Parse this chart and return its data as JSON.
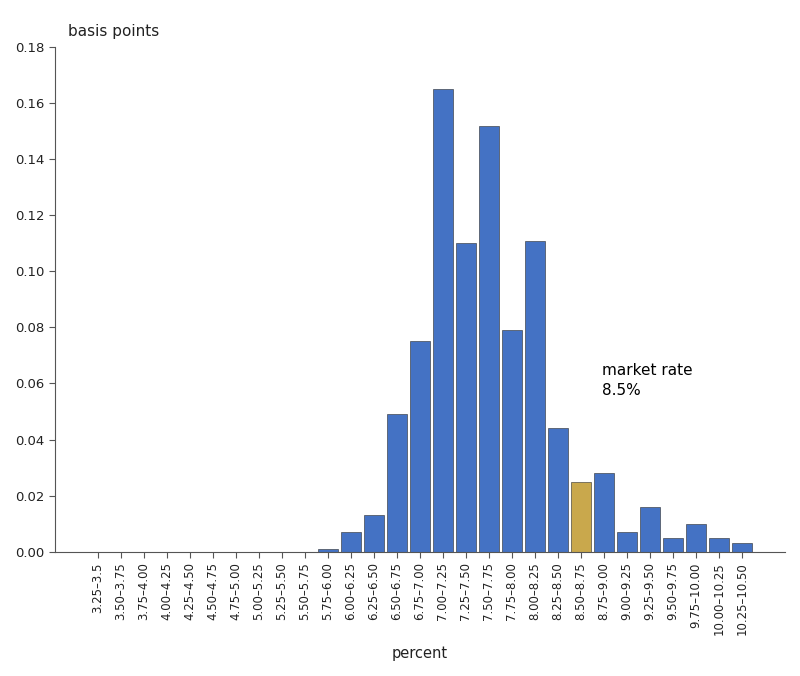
{
  "categories": [
    "3.25–3.5",
    "3.50–3.75",
    "3.75–4.00",
    "4.00–4.25",
    "4.25–4.50",
    "4.50–4.75",
    "4.75–5.00",
    "5.00–5.25",
    "5.25–5.50",
    "5.50–5.75",
    "5.75–6.00",
    "6.00–6.25",
    "6.25–6.50",
    "6.50–6.75",
    "6.75–7.00",
    "7.00–7.25",
    "7.25–7.50",
    "7.50–7.75",
    "7.75–8.00",
    "8.00–8.25",
    "8.25–8.50",
    "8.50–8.75",
    "8.75–9.00",
    "9.00–9.25",
    "9.25–9.50",
    "9.50–9.75",
    "9.75–10.00",
    "10.00–10.25",
    "10.25–10.50"
  ],
  "values": [
    0.0,
    0.0,
    0.0,
    0.0,
    0.0,
    0.0,
    0.0,
    0.0,
    0.0,
    0.0,
    0.001,
    0.007,
    0.013,
    0.049,
    0.075,
    0.165,
    0.11,
    0.152,
    0.079,
    0.111,
    0.044,
    0.025,
    0.028,
    0.007,
    0.016,
    0.005,
    0.01,
    0.005,
    0.003
  ],
  "market_rate_index": 21,
  "bar_color": "#4472C4",
  "market_rate_color": "#C9A84C",
  "top_label": "basis points",
  "xlabel": "percent",
  "ylim": [
    0,
    0.18
  ],
  "yticks": [
    0.0,
    0.02,
    0.04,
    0.06,
    0.08,
    0.1,
    0.12,
    0.14,
    0.16,
    0.18
  ],
  "market_rate_label_line1": "market rate",
  "market_rate_label_line2": "8.5%",
  "background_color": "#FFFFFF",
  "bar_edge_color": "#2a2a2a",
  "bar_edge_width": 0.4
}
